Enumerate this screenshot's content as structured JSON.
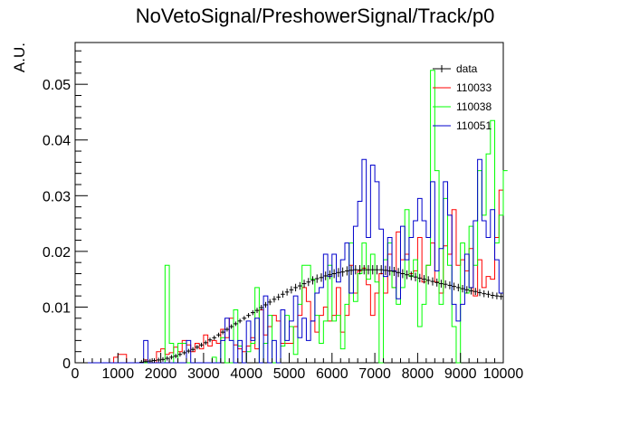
{
  "chart_data": {
    "type": "histogram",
    "title": "NoVetoSignal/PreshowerSignal/Track/p0",
    "xlabel": "",
    "ylabel": "A.U.",
    "xlim": [
      0,
      10000
    ],
    "ylim": [
      0,
      0.0575
    ],
    "x_ticks": [
      0,
      1000,
      2000,
      3000,
      4000,
      5000,
      6000,
      7000,
      8000,
      9000,
      10000
    ],
    "x_tick_labels": [
      "0",
      "1000",
      "2000",
      "3000",
      "4000",
      "5000",
      "6000",
      "7000",
      "8000",
      "9000",
      "10000"
    ],
    "y_ticks": [
      0,
      0.01,
      0.02,
      0.03,
      0.04,
      0.05
    ],
    "y_tick_labels": [
      "0",
      "0.01",
      "0.02",
      "0.03",
      "0.04",
      "0.05"
    ],
    "legend_position": "top-right",
    "bin_width": 100,
    "series": [
      {
        "name": "data",
        "color": "#000000",
        "style": "points-with-errors",
        "values": [
          0,
          0,
          0,
          0,
          0,
          0,
          0,
          0,
          0,
          0,
          0,
          0,
          0,
          0,
          0,
          0.0001,
          0.0002,
          0.0003,
          0.0004,
          0.0005,
          0.0006,
          0.0008,
          0.001,
          0.0012,
          0.0015,
          0.0018,
          0.0021,
          0.0024,
          0.0028,
          0.0032,
          0.0036,
          0.0041,
          0.0045,
          0.005,
          0.0055,
          0.006,
          0.0065,
          0.007,
          0.0075,
          0.008,
          0.0085,
          0.009,
          0.0094,
          0.0099,
          0.0104,
          0.0109,
          0.0114,
          0.0118,
          0.0123,
          0.0127,
          0.0131,
          0.0135,
          0.0138,
          0.0142,
          0.0145,
          0.0148,
          0.0151,
          0.0153,
          0.0156,
          0.0158,
          0.016,
          0.0162,
          0.0163,
          0.0165,
          0.0166,
          0.0167,
          0.0167,
          0.0167,
          0.0167,
          0.0167,
          0.0167,
          0.0167,
          0.0166,
          0.0165,
          0.0164,
          0.0162,
          0.016,
          0.0158,
          0.0156,
          0.0154,
          0.0152,
          0.015,
          0.0148,
          0.0146,
          0.0144,
          0.0142,
          0.0141,
          0.0139,
          0.0137,
          0.0135,
          0.0133,
          0.0131,
          0.0129,
          0.0128,
          0.0126,
          0.0124,
          0.0123,
          0.0121,
          0.012,
          0.0119
        ]
      },
      {
        "name": "110033",
        "color": "#ff0000",
        "style": "step",
        "values": [
          0,
          0,
          0,
          0,
          0,
          0,
          0,
          0,
          0,
          0.001,
          0.0015,
          0.0015,
          0,
          0,
          0,
          0,
          0.0005,
          0,
          0,
          0.002,
          0.0025,
          0.0015,
          0.0018,
          0.0028,
          0.002,
          0.004,
          0.0032,
          0.002,
          0.0035,
          0.0025,
          0.005,
          0.003,
          0.004,
          0.0035,
          0.006,
          0.0045,
          0.008,
          0.0032,
          0.0025,
          0.002,
          0.003,
          0.0045,
          0.0025,
          0.0095,
          0.005,
          0.0065,
          0.0085,
          0.0075,
          0.0035,
          0.0035,
          0.0035,
          0.0065,
          0.0085,
          0.0135,
          0.011,
          0.0075,
          0.0055,
          0.0085,
          0.01,
          0.0075,
          0.0085,
          0.0135,
          0.0055,
          0.0085,
          0.0175,
          0.0125,
          0.0165,
          0.017,
          0.014,
          0.0085,
          0.0125,
          0.016,
          0.0125,
          0.0195,
          0.0135,
          0.0235,
          0.0185,
          0.0195,
          0.016,
          0.0165,
          0.0225,
          0.0145,
          0.0175,
          0.0215,
          0.0145,
          0.0125,
          0.021,
          0.0195,
          0.0275,
          0.0175,
          0.0185,
          0.0165,
          0.0205,
          0.012,
          0.0185,
          0.0135,
          0.0155,
          0.015,
          0.0225,
          0.031
        ]
      },
      {
        "name": "110038",
        "color": "#00ff00",
        "style": "step",
        "values": [
          0,
          0,
          0,
          0,
          0,
          0,
          0,
          0,
          0,
          0,
          0,
          0,
          0,
          0,
          0,
          0,
          0,
          0,
          0,
          0,
          0,
          0.0175,
          0.0035,
          0,
          0.0035,
          0.0035,
          0,
          0,
          0,
          0,
          0,
          0,
          0.001,
          0,
          0.0045,
          0,
          0,
          0.0095,
          0.003,
          0,
          0.002,
          0.0035,
          0.0135,
          0,
          0.0035,
          0.0085,
          0,
          0,
          0.003,
          0.0085,
          0.0065,
          0.0015,
          0.0105,
          0.0175,
          0.0175,
          0.015,
          0.0085,
          0.0035,
          0.0075,
          0.0175,
          0.0075,
          0.0085,
          0.0025,
          0.0105,
          0.0215,
          0.011,
          0.016,
          0.0215,
          0.015,
          0.0195,
          0.0145,
          0,
          0.0185,
          0.0215,
          0.0135,
          0.0105,
          0.0135,
          0.0275,
          0.0155,
          0.0185,
          0.0065,
          0.0105,
          0.0175,
          0.0525,
          0.0345,
          0.0105,
          0.0295,
          0.0175,
          0.0065,
          0,
          0.0215,
          0.0125,
          0.0245,
          0.0175,
          0.0345,
          0.0265,
          0.0375,
          0.0435,
          0.0215,
          0.0265,
          0.0345
        ]
      },
      {
        "name": "110051",
        "color": "#0000cc",
        "style": "step",
        "values": [
          0,
          0,
          0,
          0,
          0,
          0,
          0,
          0,
          0,
          0,
          0,
          0,
          0,
          0,
          0,
          0,
          0.004,
          0,
          0,
          0,
          0,
          0,
          0,
          0,
          0,
          0,
          0.004,
          0,
          0,
          0,
          0,
          0,
          0,
          0,
          0.004,
          0.008,
          0.004,
          0,
          0.004,
          0,
          0.0075,
          0.004,
          0.008,
          0,
          0.012,
          0,
          0.004,
          0,
          0.0095,
          0.004,
          0.0075,
          0.012,
          0.0045,
          0.008,
          0.004,
          0.0075,
          0.0125,
          0.0135,
          0.0195,
          0.0155,
          0.0195,
          0.0145,
          0.0185,
          0.0215,
          0.0125,
          0.0245,
          0.029,
          0.0365,
          0.0225,
          0.0355,
          0.0325,
          0.024,
          0.0155,
          0.0225,
          0.0165,
          0.0115,
          0.0245,
          0.0185,
          0.0225,
          0.0255,
          0.0295,
          0.0255,
          0.0225,
          0.0325,
          0.0165,
          0.0205,
          0.0325,
          0.0265,
          0.0105,
          0.0075,
          0.0105,
          0.0195,
          0.0135,
          0.0255,
          0.0365,
          0.0255,
          0.0225,
          0.0275,
          0.0185,
          0.0125
        ]
      }
    ]
  }
}
